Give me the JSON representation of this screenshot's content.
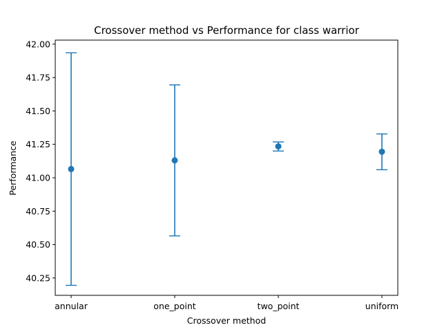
{
  "chart_data": {
    "type": "scatter",
    "title": "Crossover method vs Performance for class warrior",
    "xlabel": "Crossover method",
    "ylabel": "Performance",
    "categories": [
      "annular",
      "one_point",
      "two_point",
      "uniform"
    ],
    "series": [
      {
        "values": [
          41.065,
          41.13,
          41.235,
          41.195
        ],
        "error_low": [
          40.195,
          40.565,
          41.2,
          41.06
        ],
        "error_high": [
          41.935,
          41.695,
          41.268,
          41.328
        ]
      }
    ],
    "ylim": [
      40.12,
      42.03
    ],
    "yticks": [
      "40.25",
      "40.50",
      "40.75",
      "41.00",
      "41.25",
      "41.50",
      "41.75",
      "42.00"
    ],
    "grid": false,
    "color": "#1f77b4"
  }
}
